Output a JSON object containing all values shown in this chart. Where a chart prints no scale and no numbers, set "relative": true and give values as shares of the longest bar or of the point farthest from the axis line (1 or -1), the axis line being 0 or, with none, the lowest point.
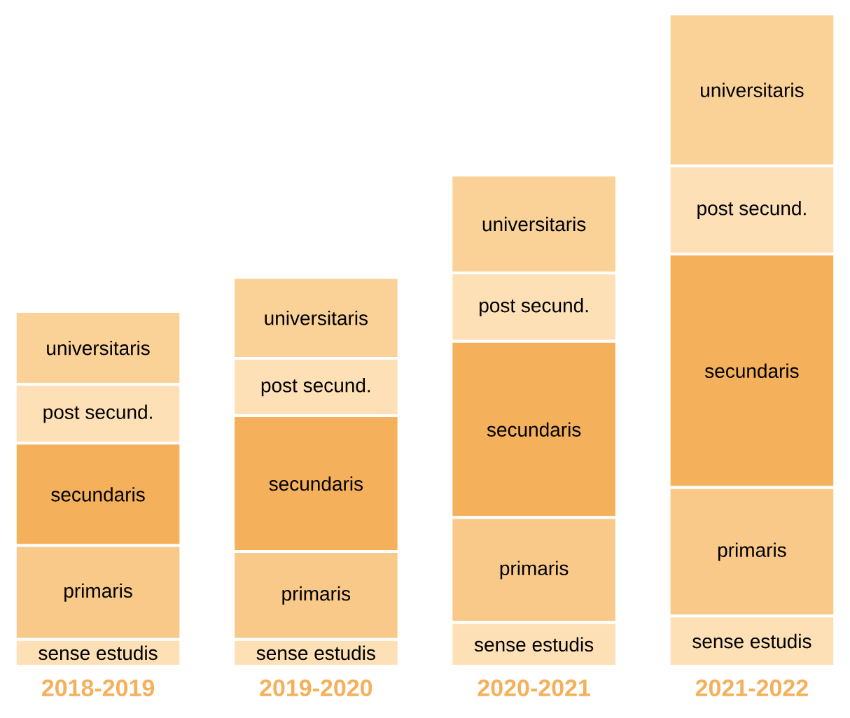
{
  "chart_data": {
    "type": "bar",
    "stacked": true,
    "relative": true,
    "categories": [
      "2018-2019",
      "2019-2020",
      "2020-2021",
      "2021-2022"
    ],
    "series": [
      {
        "name": "sense estudis",
        "color": "#fde0b6",
        "values": [
          0.041,
          0.041,
          0.067,
          0.077
        ]
      },
      {
        "name": "primaris",
        "color": "#f9c98a",
        "values": [
          0.144,
          0.135,
          0.161,
          0.197
        ]
      },
      {
        "name": "secundaris",
        "color": "#f5b05c",
        "values": [
          0.157,
          0.208,
          0.27,
          0.358
        ]
      },
      {
        "name": "post secund.",
        "color": "#fde0b6",
        "values": [
          0.09,
          0.088,
          0.105,
          0.135
        ]
      },
      {
        "name": "universitaris",
        "color": "#fad298",
        "values": [
          0.112,
          0.124,
          0.15,
          0.233
        ]
      }
    ]
  }
}
